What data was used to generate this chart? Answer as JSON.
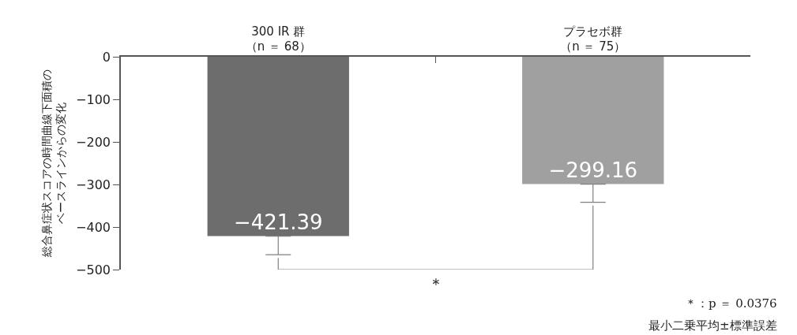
{
  "chart_data": {
    "type": "bar",
    "categories": [
      "300 IR 群（n ＝ 68）",
      "プラセボ群（n ＝ 75）"
    ],
    "values": [
      -421.39,
      -299.16
    ],
    "colors": [
      "#6d6d6d",
      "#a0a0a0"
    ],
    "errors": [
      [
        -465,
        -421.39
      ],
      [
        -342,
        -299.16
      ]
    ],
    "data_labels": true,
    "ylabel": "総合鼻症状スコアの時間曲線下面積のベースラインからの変化",
    "ylim": [
      -500,
      0
    ],
    "yticks": [
      0,
      -100,
      -200,
      -300,
      -400,
      -500
    ],
    "legend": false,
    "annotations": [
      "＊",
      "＊：p ＝ 0.0376",
      "最小二乗平均±標準誤差"
    ]
  }
}
